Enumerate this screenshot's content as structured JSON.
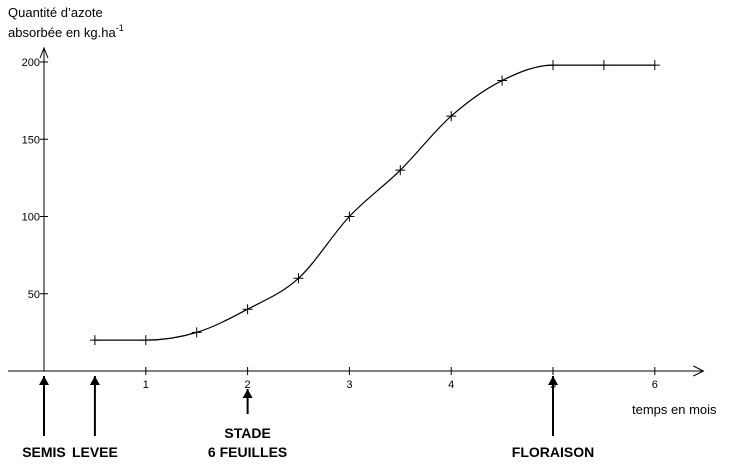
{
  "chart_data": {
    "type": "line",
    "ylabel_line1": "Quantité d’azote",
    "ylabel_line2": "absorbée en kg.ha",
    "ylabel_sup": "-1",
    "xlabel": "temps en mois",
    "xlim": [
      0,
      6.3
    ],
    "ylim": [
      0,
      200
    ],
    "x_ticks": [
      1,
      2,
      3,
      4,
      5,
      6
    ],
    "y_ticks": [
      50,
      100,
      150,
      200
    ],
    "series": [
      {
        "x": [
          0.5,
          1,
          1.5,
          2,
          2.5,
          3,
          3.5,
          4,
          4.5,
          5,
          5.5,
          6
        ],
        "values": [
          20,
          20,
          25,
          40,
          60,
          100,
          130,
          165,
          188,
          198,
          198,
          198
        ]
      }
    ],
    "annotations": [
      {
        "x": 0,
        "lines": [
          "SEMIS"
        ]
      },
      {
        "x": 0.5,
        "lines": [
          "LEVEE"
        ]
      },
      {
        "x": 2,
        "lines": [
          "STADE",
          "6 FEUILLES"
        ]
      },
      {
        "x": 5,
        "lines": [
          "FLORAISON"
        ]
      }
    ]
  }
}
